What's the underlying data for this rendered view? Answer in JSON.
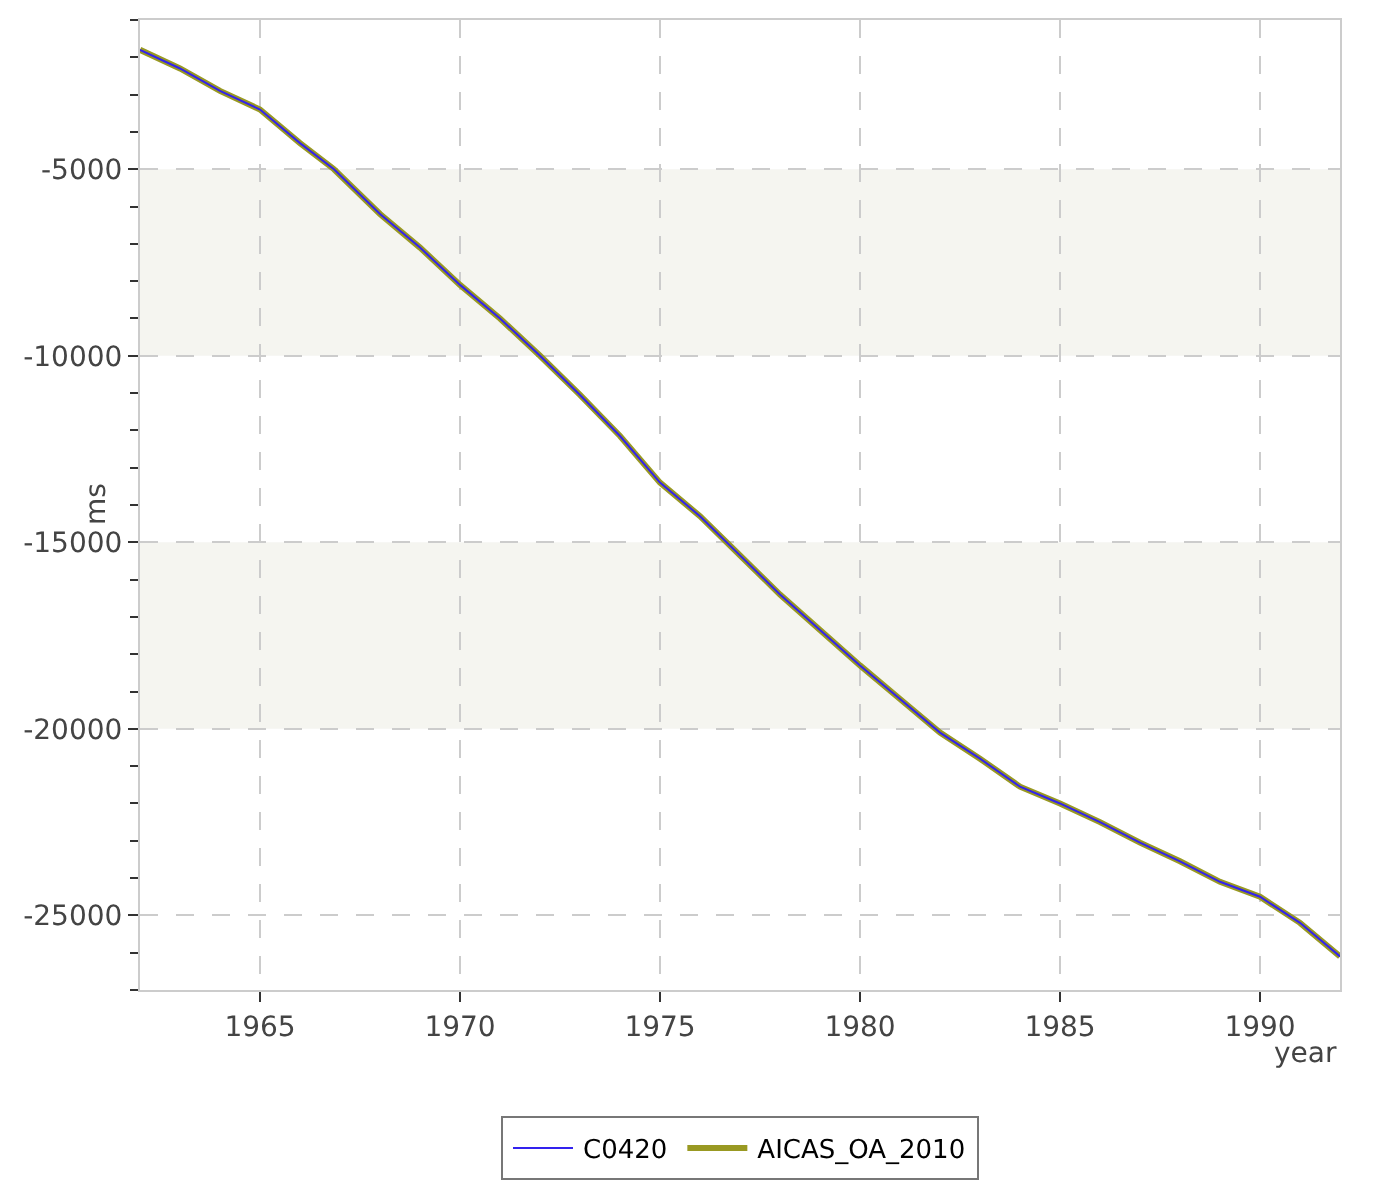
{
  "chart_data": {
    "type": "line",
    "xlabel": "year",
    "ylabel": "ms",
    "x": [
      1962.0,
      1963,
      1964,
      1965,
      1966,
      1966.85,
      1968,
      1969,
      1970,
      1971,
      1972,
      1973,
      1974,
      1975,
      1976,
      1977,
      1978,
      1979,
      1980,
      1981,
      1982,
      1983,
      1984,
      1985,
      1986,
      1987,
      1988,
      1989,
      1990,
      1991,
      1992
    ],
    "series": [
      {
        "name": "C0420",
        "color": "#3322ee",
        "values": [
          -1800,
          -2300,
          -2900,
          -3400,
          -4300,
          -5000,
          -6200,
          -7100,
          -8100,
          -9000,
          -10000,
          -11050,
          -12150,
          -13400,
          -14300,
          -15350,
          -16400,
          -17350,
          -18300,
          -19200,
          -20100,
          -20800,
          -21550,
          -22000,
          -22500,
          -23050,
          -23550,
          -24100,
          -24500,
          -25200,
          -26100
        ]
      },
      {
        "name": "AICAS_OA_2010",
        "color": "#999922",
        "values": [
          -1800,
          -2300,
          -2900,
          -3400,
          -4300,
          -5000,
          -6200,
          -7100,
          -8100,
          -9000,
          -10000,
          -11050,
          -12150,
          -13400,
          -14300,
          -15350,
          -16400,
          -17350,
          -18300,
          -19200,
          -20100,
          -20800,
          -21550,
          -22000,
          -22500,
          -23050,
          -23550,
          -24100,
          -24500,
          -25200,
          -26100
        ]
      }
    ],
    "xlim": [
      1962,
      1992
    ],
    "xticks": [
      1965,
      1970,
      1975,
      1980,
      1985,
      1990
    ],
    "ylim": [
      -27000,
      -1000
    ],
    "yticks": [
      -5000,
      -10000,
      -15000,
      -20000,
      -25000
    ],
    "bands": [
      {
        "axis": "y",
        "from": -5000,
        "to": -10000,
        "color": "#f5f5f0"
      },
      {
        "axis": "y",
        "from": -15000,
        "to": -20000,
        "color": "#f5f5f0"
      }
    ],
    "grid": true,
    "legend": "bottom",
    "marker": "none",
    "line_style": "solid"
  }
}
